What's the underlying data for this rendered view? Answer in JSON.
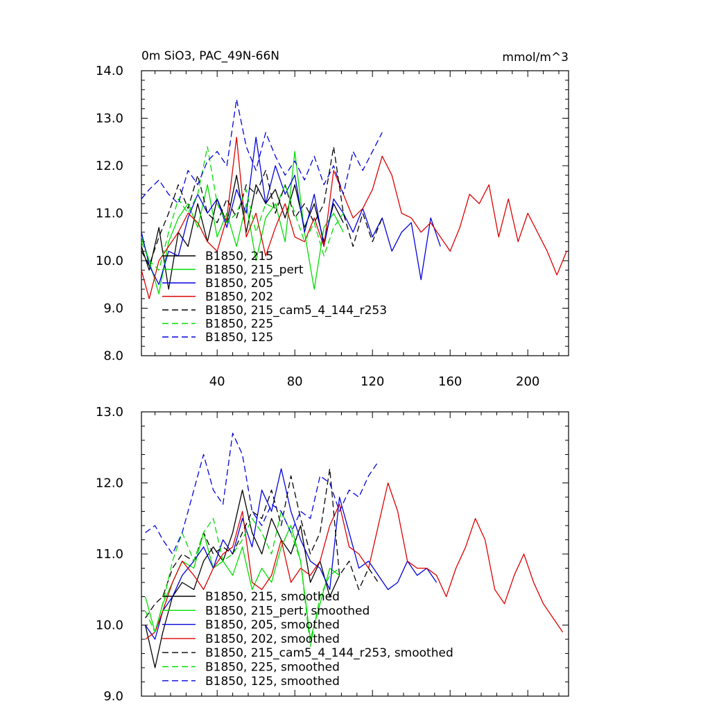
{
  "chart_data": [
    {
      "type": "line",
      "title_left": "0m SiO3, PAC_49N-66N",
      "title_right": "mmol/m^3",
      "xlim": [
        1,
        221
      ],
      "ylim": [
        8.0,
        14.0
      ],
      "x_ticks": [
        40,
        80,
        120,
        160,
        200
      ],
      "x_tick_labels": [
        "40",
        "80",
        "120",
        "160",
        "200"
      ],
      "y_ticks": [
        8.0,
        9.0,
        10.0,
        11.0,
        12.0,
        13.0,
        14.0
      ],
      "y_tick_labels": [
        "8.0",
        "9.0",
        "10.0",
        "11.0",
        "12.0",
        "13.0",
        "14.0"
      ],
      "legend_position": "bottom-left",
      "series": [
        {
          "name": "B1850, 215",
          "color": "#000000",
          "dash": "solid",
          "x": [
            1,
            5,
            10,
            15,
            20,
            25,
            30,
            35,
            40,
            45,
            50,
            55,
            60,
            65,
            70,
            75,
            80,
            85,
            90,
            95,
            100,
            105
          ],
          "values": [
            10.3,
            9.8,
            10.7,
            9.4,
            10.6,
            10.3,
            11.2,
            10.4,
            11.3,
            10.8,
            11.8,
            10.6,
            11.6,
            11.2,
            11.5,
            10.9,
            11.6,
            10.7,
            11.2,
            10.4,
            11.2,
            10.8
          ]
        },
        {
          "name": "B1850, 215_pert",
          "color": "#00dd00",
          "dash": "solid",
          "x": [
            1,
            5,
            10,
            15,
            20,
            25,
            30,
            35,
            40,
            45,
            50,
            55,
            60,
            65,
            70,
            75,
            80,
            85,
            90,
            95,
            100,
            105
          ],
          "values": [
            10.5,
            10.0,
            9.3,
            10.4,
            10.9,
            11.2,
            10.7,
            11.6,
            10.5,
            11.0,
            10.3,
            11.2,
            10.0,
            10.9,
            11.2,
            10.4,
            12.3,
            10.6,
            9.4,
            10.7,
            11.0,
            10.6
          ]
        },
        {
          "name": "B1850, 205",
          "color": "#0000dd",
          "dash": "solid",
          "x": [
            1,
            5,
            10,
            15,
            20,
            25,
            30,
            35,
            40,
            45,
            50,
            55,
            60,
            65,
            70,
            75,
            80,
            85,
            90,
            95,
            100,
            105,
            110,
            115,
            120,
            125,
            130,
            135,
            140,
            145,
            150,
            155
          ],
          "values": [
            10.6,
            9.9,
            9.5,
            10.2,
            10.1,
            10.9,
            11.4,
            11.0,
            11.3,
            10.7,
            11.5,
            11.0,
            12.6,
            11.2,
            12.0,
            11.4,
            11.8,
            10.6,
            11.4,
            10.3,
            11.3,
            11.0,
            10.6,
            11.1,
            10.5,
            10.9,
            10.2,
            10.6,
            10.8,
            9.6,
            10.9,
            10.3
          ]
        },
        {
          "name": "B1850, 202",
          "color": "#dd0000",
          "dash": "solid",
          "x": [
            1,
            5,
            10,
            15,
            20,
            25,
            30,
            35,
            40,
            45,
            50,
            55,
            60,
            65,
            70,
            75,
            80,
            85,
            90,
            95,
            100,
            105,
            110,
            115,
            120,
            125,
            130,
            135,
            140,
            145,
            150,
            155,
            160,
            165,
            170,
            175,
            180,
            185,
            190,
            195,
            200,
            205,
            210,
            215,
            220
          ],
          "values": [
            9.8,
            9.2,
            10.0,
            10.3,
            10.6,
            11.0,
            10.8,
            10.4,
            10.2,
            10.9,
            12.6,
            10.5,
            11.0,
            10.1,
            10.7,
            11.2,
            10.5,
            10.4,
            10.9,
            10.3,
            11.9,
            11.4,
            10.9,
            11.1,
            11.5,
            12.2,
            11.8,
            11.0,
            10.9,
            10.6,
            10.8,
            10.5,
            10.2,
            10.7,
            11.4,
            11.2,
            11.6,
            10.5,
            11.3,
            10.4,
            11.0,
            10.6,
            10.2,
            9.7,
            10.2
          ]
        },
        {
          "name": "B1850, 215_cam5_4_144_r253",
          "color": "#000000",
          "dash": "dashed",
          "x": [
            1,
            5,
            10,
            15,
            20,
            25,
            30,
            35,
            40,
            45,
            50,
            55,
            60,
            65,
            70,
            75,
            80,
            85,
            90,
            95,
            100,
            105,
            110,
            115,
            120,
            125
          ],
          "values": [
            10.2,
            9.9,
            10.5,
            11.0,
            11.6,
            11.1,
            11.8,
            11.0,
            10.8,
            11.3,
            10.9,
            11.6,
            11.4,
            11.9,
            11.0,
            11.6,
            10.9,
            11.2,
            10.8,
            11.2,
            12.4,
            11.0,
            10.3,
            11.0,
            10.4,
            10.9
          ]
        },
        {
          "name": "B1850, 225",
          "color": "#00dd00",
          "dash": "dashed",
          "x": [
            1,
            5,
            10,
            15,
            20,
            25,
            30,
            35,
            40,
            45,
            50,
            55,
            60,
            65,
            70,
            75,
            80,
            85,
            90,
            95,
            100,
            105
          ],
          "values": [
            10.4,
            10.0,
            9.8,
            10.6,
            11.3,
            11.0,
            11.4,
            12.4,
            11.2,
            10.8,
            11.0,
            11.5,
            10.6,
            11.2,
            11.1,
            11.6,
            11.0,
            10.4,
            10.8,
            10.1,
            10.7,
            11.0
          ]
        },
        {
          "name": "B1850, 125",
          "color": "#0000dd",
          "dash": "dashed",
          "x": [
            1,
            5,
            10,
            15,
            20,
            25,
            30,
            35,
            40,
            45,
            50,
            55,
            60,
            65,
            70,
            75,
            80,
            85,
            90,
            95,
            100,
            105,
            110,
            115,
            120,
            125
          ],
          "values": [
            11.3,
            11.5,
            11.7,
            11.4,
            11.2,
            11.9,
            11.6,
            12.1,
            12.3,
            12.0,
            13.4,
            12.4,
            11.9,
            12.7,
            12.2,
            11.8,
            12.1,
            11.7,
            12.2,
            11.6,
            12.0,
            11.4,
            12.3,
            11.9,
            12.3,
            12.7
          ]
        }
      ]
    },
    {
      "type": "line",
      "xlim": [
        1,
        221
      ],
      "ylim": [
        9.0,
        13.0
      ],
      "y_ticks": [
        9.0,
        10.0,
        11.0,
        12.0,
        13.0
      ],
      "y_tick_labels": [
        "9.0",
        "10.0",
        "11.0",
        "12.0",
        "13.0"
      ],
      "legend_position": "bottom-left",
      "series": [
        {
          "name": "B1850, 215, smoothed",
          "color": "#000000",
          "dash": "solid",
          "x": [
            3,
            8,
            12,
            17,
            22,
            28,
            33,
            38,
            43,
            48,
            53,
            58,
            63,
            68,
            73,
            78,
            83,
            88,
            93,
            98,
            103
          ],
          "values": [
            10.0,
            9.4,
            9.9,
            10.4,
            10.6,
            10.5,
            10.9,
            11.1,
            10.9,
            11.3,
            11.9,
            11.3,
            11.0,
            11.5,
            11.2,
            11.0,
            11.4,
            10.6,
            10.9,
            10.4,
            10.7
          ]
        },
        {
          "name": "B1850, 215_pert, smoothed",
          "color": "#00dd00",
          "dash": "solid",
          "x": [
            3,
            8,
            12,
            17,
            22,
            28,
            33,
            38,
            43,
            48,
            53,
            58,
            63,
            68,
            73,
            78,
            83,
            88,
            93,
            98,
            103
          ],
          "values": [
            10.4,
            9.9,
            10.3,
            10.6,
            10.9,
            10.8,
            11.3,
            10.8,
            10.9,
            10.7,
            11.1,
            10.5,
            10.8,
            10.6,
            11.1,
            11.4,
            10.9,
            9.8,
            10.3,
            10.8,
            10.7
          ]
        },
        {
          "name": "B1850, 205, smoothed",
          "color": "#0000dd",
          "dash": "solid",
          "x": [
            3,
            8,
            12,
            17,
            22,
            28,
            33,
            38,
            43,
            48,
            53,
            58,
            63,
            68,
            73,
            78,
            83,
            88,
            93,
            98,
            103,
            108,
            113,
            118,
            123,
            128,
            133,
            138,
            143,
            148,
            153
          ],
          "values": [
            10.0,
            9.8,
            10.2,
            10.4,
            10.7,
            10.9,
            11.1,
            10.8,
            11.2,
            11.0,
            11.5,
            11.1,
            11.9,
            11.6,
            12.2,
            11.6,
            11.2,
            10.9,
            10.8,
            10.5,
            11.8,
            11.3,
            10.8,
            10.9,
            10.7,
            10.5,
            10.6,
            10.9,
            10.7,
            10.8,
            10.6
          ]
        },
        {
          "name": "B1850, 202, smoothed",
          "color": "#dd0000",
          "dash": "solid",
          "x": [
            3,
            8,
            12,
            17,
            22,
            28,
            33,
            38,
            43,
            48,
            53,
            58,
            63,
            68,
            73,
            78,
            83,
            88,
            93,
            98,
            103,
            108,
            113,
            118,
            123,
            128,
            133,
            138,
            143,
            148,
            153,
            158,
            163,
            168,
            173,
            178,
            183,
            188,
            193,
            198,
            203,
            208,
            213,
            218
          ],
          "values": [
            9.8,
            9.9,
            10.2,
            10.6,
            10.9,
            10.7,
            10.5,
            10.8,
            11.0,
            11.1,
            11.6,
            10.6,
            10.5,
            10.7,
            11.2,
            10.6,
            10.8,
            10.7,
            10.9,
            11.4,
            11.7,
            11.1,
            11.0,
            10.8,
            11.4,
            12.0,
            11.6,
            10.9,
            10.8,
            10.8,
            10.7,
            10.4,
            10.8,
            11.1,
            11.5,
            11.2,
            10.5,
            10.3,
            10.7,
            11.0,
            10.6,
            10.3,
            10.1,
            9.9
          ]
        },
        {
          "name": "B1850, 215_cam5_4_144_r253, smoothed",
          "color": "#000000",
          "dash": "dashed",
          "x": [
            3,
            8,
            12,
            17,
            22,
            28,
            33,
            38,
            43,
            48,
            53,
            58,
            63,
            68,
            73,
            78,
            83,
            88,
            93,
            98,
            103,
            108,
            113,
            118,
            123
          ],
          "values": [
            10.1,
            10.3,
            10.4,
            10.8,
            11.0,
            10.9,
            11.3,
            11.0,
            11.1,
            11.0,
            11.3,
            11.6,
            11.5,
            11.9,
            11.4,
            12.1,
            11.5,
            11.0,
            11.3,
            12.2,
            10.7,
            10.9,
            10.5,
            10.8,
            10.6
          ]
        },
        {
          "name": "B1850, 225, smoothed",
          "color": "#00dd00",
          "dash": "dashed",
          "x": [
            3,
            8,
            12,
            17,
            22,
            28,
            33,
            38,
            43,
            48,
            53,
            58,
            63,
            68,
            73,
            78,
            83,
            88,
            93,
            98,
            103
          ],
          "values": [
            10.2,
            9.9,
            10.3,
            10.9,
            11.3,
            10.9,
            11.3,
            11.5,
            10.9,
            11.0,
            11.2,
            11.5,
            11.3,
            11.0,
            11.6,
            11.3,
            10.9,
            9.7,
            10.4,
            10.7,
            10.8
          ]
        },
        {
          "name": "B1850, 125, smoothed",
          "color": "#0000dd",
          "dash": "dashed",
          "x": [
            3,
            8,
            12,
            17,
            22,
            28,
            33,
            38,
            43,
            48,
            53,
            58,
            63,
            68,
            73,
            78,
            83,
            88,
            93,
            98,
            103,
            108,
            113,
            118,
            123
          ],
          "values": [
            11.3,
            11.4,
            11.2,
            11.0,
            11.3,
            11.9,
            12.4,
            11.9,
            11.7,
            12.7,
            12.4,
            11.6,
            11.4,
            11.7,
            11.6,
            11.3,
            11.6,
            11.5,
            12.1,
            12.0,
            11.6,
            11.9,
            11.8,
            12.1,
            12.3
          ]
        }
      ]
    }
  ]
}
